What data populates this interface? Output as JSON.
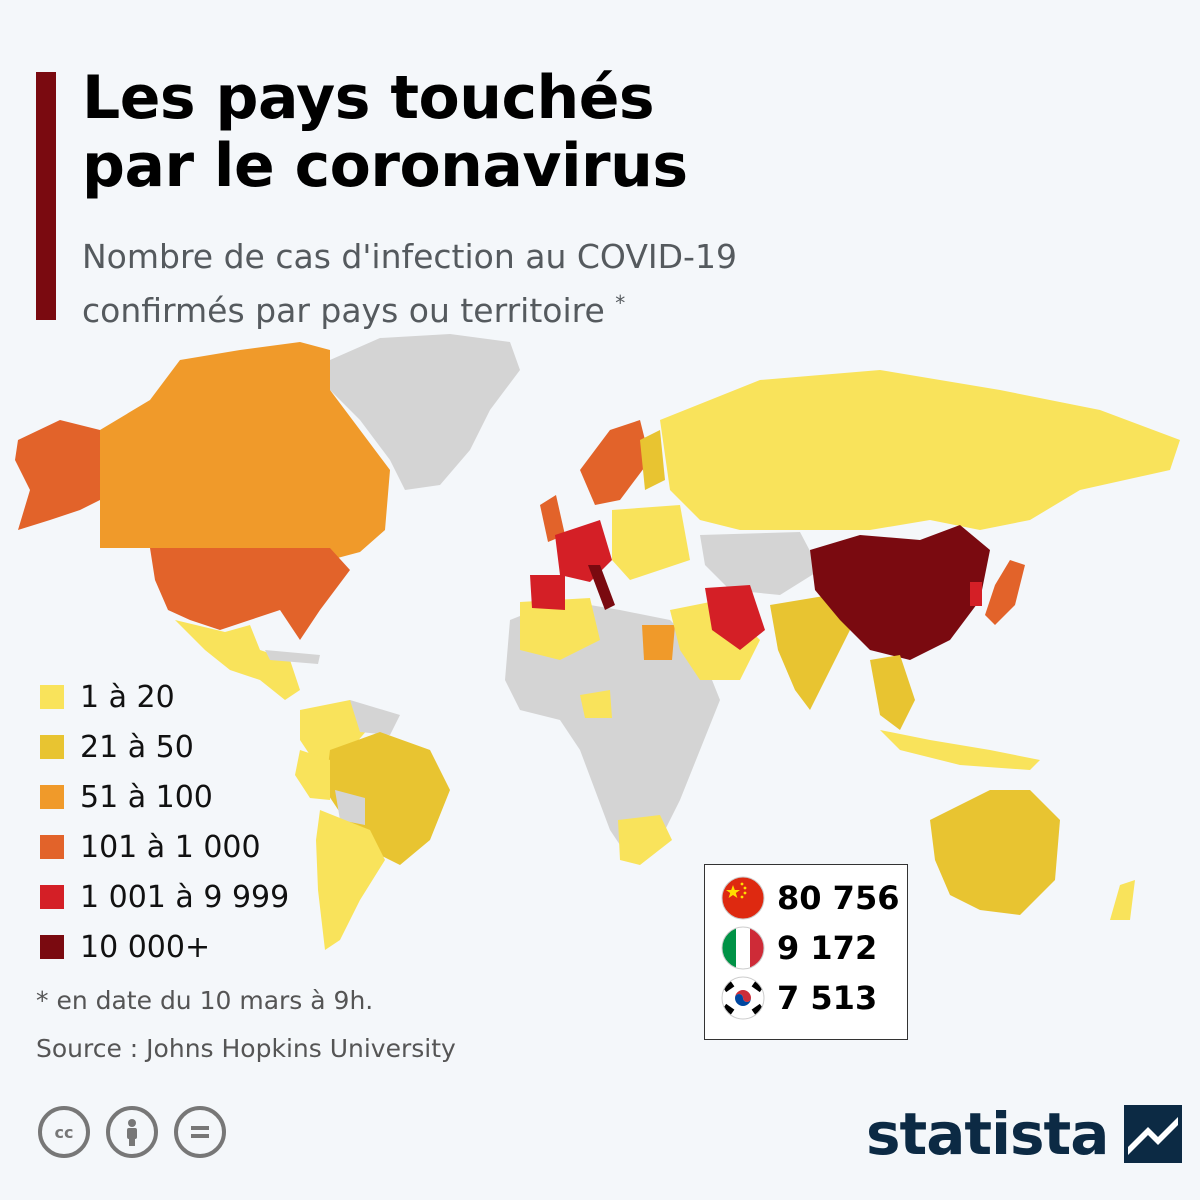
{
  "header": {
    "title_line1": "Les pays touchés",
    "title_line2": "par le coronavirus",
    "subtitle_line1": "Nombre de cas d'infection au COVID-19",
    "subtitle_line2": "confirmés par pays ou territoire",
    "subtitle_mark": "*",
    "accent_color": "#7a0a10"
  },
  "legend": [
    {
      "label": "1 à 20",
      "color": "#f9e35b"
    },
    {
      "label": "21 à 50",
      "color": "#e8c431"
    },
    {
      "label": "51 à 100",
      "color": "#f09a2a"
    },
    {
      "label": "101 à 1 000",
      "color": "#e2632a"
    },
    {
      "label": "1 001 à 9 999",
      "color": "#d41f26"
    },
    {
      "label": "10 000+",
      "color": "#7a0a10"
    }
  ],
  "no_data_color": "#d4d4d4",
  "top_countries": [
    {
      "country": "China",
      "flag": "china-flag",
      "value": "80 756"
    },
    {
      "country": "Italy",
      "flag": "italy-flag",
      "value": "9 172"
    },
    {
      "country": "South Korea",
      "flag": "south-korea-flag",
      "value": "7 513"
    }
  ],
  "footnote": "* en date du 10 mars à 9h.",
  "source": "Source : Johns Hopkins University",
  "license_icons": [
    "cc-icon",
    "attribution-icon",
    "no-derivatives-icon"
  ],
  "brand": {
    "name": "statista",
    "color": "#0c2a44"
  }
}
